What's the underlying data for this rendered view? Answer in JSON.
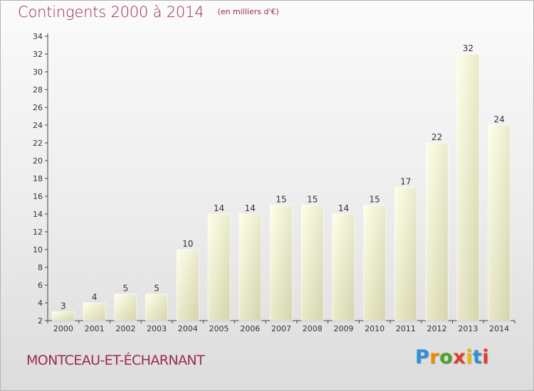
{
  "title": "Contingents 2000 à 2014",
  "unit": "(en milliers d'€)",
  "place": "MONTCEAU-ET-ÉCHARNANT",
  "logo": {
    "letters": [
      "P",
      "r",
      "o",
      "x",
      "i",
      "t",
      "i"
    ],
    "colors": [
      "#2f8fd8",
      "#f08a00",
      "#4aa32a",
      "#e23b2e",
      "#f0b800",
      "#2f8fd8",
      "#e23b2e"
    ]
  },
  "colors": {
    "accent": "#9b2b4b",
    "bar_light": "#ffffe6",
    "bar_dark": "#d6d6b0",
    "axis": "#333333"
  },
  "chart_data": {
    "type": "bar",
    "title": "Contingents 2000 à 2014",
    "categories": [
      "2000",
      "2001",
      "2002",
      "2003",
      "2004",
      "2005",
      "2006",
      "2007",
      "2008",
      "2009",
      "2010",
      "2011",
      "2012",
      "2013",
      "2014"
    ],
    "values": [
      3,
      4,
      5,
      5,
      10,
      14,
      14,
      15,
      15,
      14,
      15,
      17,
      22,
      32,
      24
    ],
    "ylim": [
      2,
      34
    ],
    "yticks": [
      2,
      4,
      6,
      8,
      10,
      12,
      14,
      16,
      18,
      20,
      22,
      24,
      26,
      28,
      30,
      32,
      34
    ],
    "xlabel": "",
    "ylabel": "",
    "grid": false,
    "data_labels": true
  }
}
